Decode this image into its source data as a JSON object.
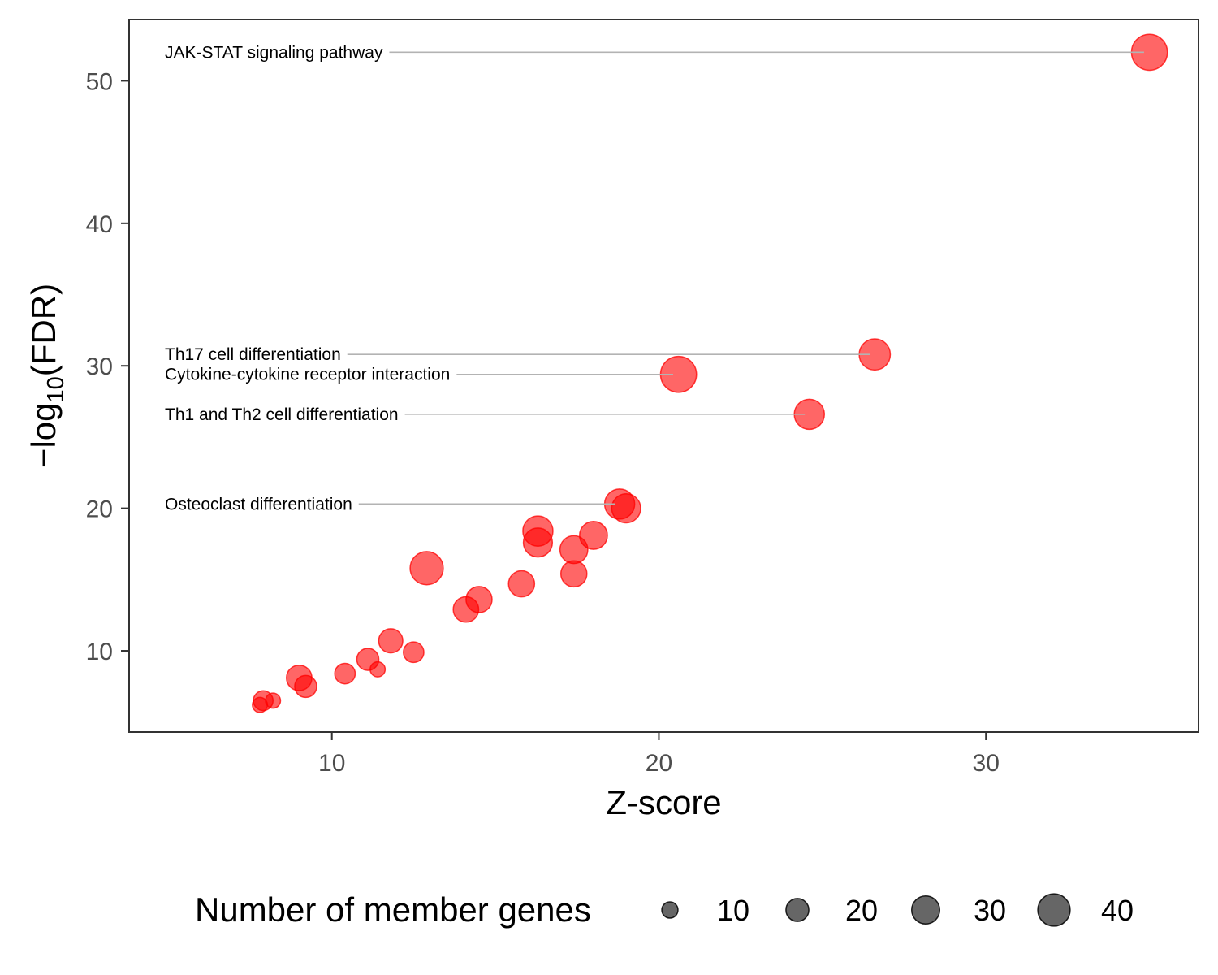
{
  "chart_data": {
    "type": "scatter",
    "xlabel": "Z-score",
    "ylabel_prefix": "−log",
    "ylabel_subscript": "10",
    "ylabel_suffix": "(FDR)",
    "xlim": [
      3.8,
      36.5
    ],
    "ylim": [
      4.3,
      54.3
    ],
    "xticks": [
      10,
      20,
      30
    ],
    "yticks": [
      10,
      20,
      30,
      40,
      50
    ],
    "grid": false,
    "point_color": "#ff0000",
    "point_opacity": 0.6,
    "size_legend": {
      "title": "Number of member genes",
      "position": "bottom",
      "values": [
        10,
        20,
        30,
        40
      ],
      "labels": [
        "10",
        "20",
        "30",
        "40"
      ]
    },
    "points": [
      {
        "x": 35.0,
        "y": 52.0,
        "size": 40,
        "label": "JAK-STAT signaling pathway"
      },
      {
        "x": 26.6,
        "y": 30.8,
        "size": 30,
        "label": "Th17 cell differentiation"
      },
      {
        "x": 20.6,
        "y": 29.4,
        "size": 40,
        "label": "Cytokine-cytokine receptor interaction"
      },
      {
        "x": 24.6,
        "y": 26.6,
        "size": 28,
        "label": "Th1 and Th2 cell differentiation"
      },
      {
        "x": 18.8,
        "y": 20.3,
        "size": 28,
        "label": "Osteoclast differentiation"
      },
      {
        "x": 19.0,
        "y": 20.0,
        "size": 26
      },
      {
        "x": 16.3,
        "y": 18.4,
        "size": 28
      },
      {
        "x": 16.3,
        "y": 17.6,
        "size": 26
      },
      {
        "x": 18.0,
        "y": 18.1,
        "size": 24
      },
      {
        "x": 17.4,
        "y": 17.1,
        "size": 24
      },
      {
        "x": 17.4,
        "y": 15.4,
        "size": 21
      },
      {
        "x": 12.9,
        "y": 15.8,
        "size": 34
      },
      {
        "x": 15.8,
        "y": 14.7,
        "size": 21
      },
      {
        "x": 14.5,
        "y": 13.6,
        "size": 21
      },
      {
        "x": 14.1,
        "y": 12.9,
        "size": 20
      },
      {
        "x": 11.8,
        "y": 10.7,
        "size": 18
      },
      {
        "x": 12.5,
        "y": 9.9,
        "size": 13
      },
      {
        "x": 11.1,
        "y": 9.4,
        "size": 15
      },
      {
        "x": 11.4,
        "y": 8.7,
        "size": 7
      },
      {
        "x": 10.4,
        "y": 8.4,
        "size": 13
      },
      {
        "x": 9.0,
        "y": 8.1,
        "size": 20
      },
      {
        "x": 9.2,
        "y": 7.5,
        "size": 15
      },
      {
        "x": 7.9,
        "y": 6.5,
        "size": 12
      },
      {
        "x": 8.2,
        "y": 6.5,
        "size": 7
      },
      {
        "x": 7.8,
        "y": 6.2,
        "size": 7
      }
    ]
  }
}
